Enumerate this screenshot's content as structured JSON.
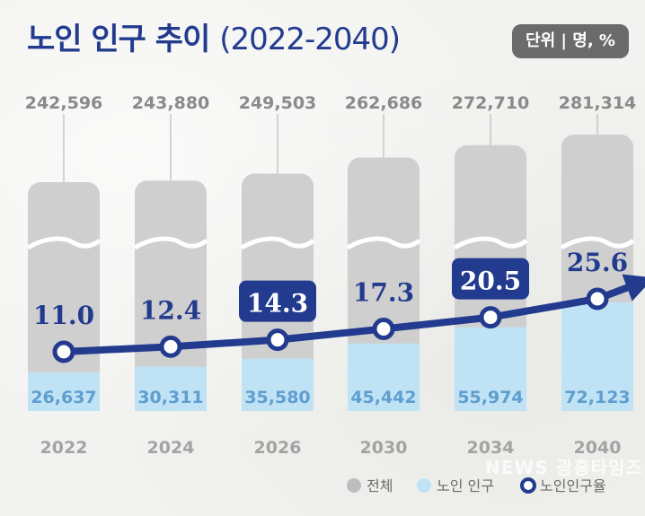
{
  "title": {
    "main": "노인 인구 추이",
    "years": "(2022-2040)"
  },
  "unit_label": "단위 | 명, %",
  "watermark": "NEWS 광흥타임즈",
  "colors": {
    "title": "#233b8e",
    "total_bar": "#cfcfcf",
    "elderly_bar": "#bfe3f5",
    "rate_line": "#233b8e",
    "total_label": "#8a8a8a",
    "elderly_label": "#5f9ecf",
    "year_label": "#a3a3a3",
    "unit_badge": "#6b6b6b"
  },
  "chart_data": {
    "type": "bar",
    "categories": [
      "2022",
      "2024",
      "2026",
      "2030",
      "2034",
      "2040"
    ],
    "series": [
      {
        "name": "전체",
        "values": [
          242596,
          243880,
          249503,
          262686,
          272710,
          281314
        ]
      },
      {
        "name": "노인 인구",
        "values": [
          26637,
          30311,
          35580,
          45442,
          55974,
          72123
        ]
      },
      {
        "name": "노인인구율",
        "type": "line",
        "values": [
          11.0,
          12.4,
          14.3,
          17.3,
          20.5,
          25.6
        ]
      }
    ],
    "total_labels": [
      "242,596",
      "243,880",
      "249,503",
      "262,686",
      "272,710",
      "281,314"
    ],
    "elderly_labels": [
      "26,637",
      "30,311",
      "35,580",
      "45,442",
      "55,974",
      "72,123"
    ],
    "rate_labels": [
      "11.0",
      "12.4",
      "14.3",
      "17.3",
      "20.5",
      "25.6"
    ],
    "highlighted_rates": [
      false,
      false,
      true,
      false,
      true,
      false
    ],
    "legend": [
      "전체",
      "노인 인구",
      "노인인구율"
    ],
    "legend_position": "bottom-right",
    "y_axis_break": true,
    "unit": "명, %"
  }
}
